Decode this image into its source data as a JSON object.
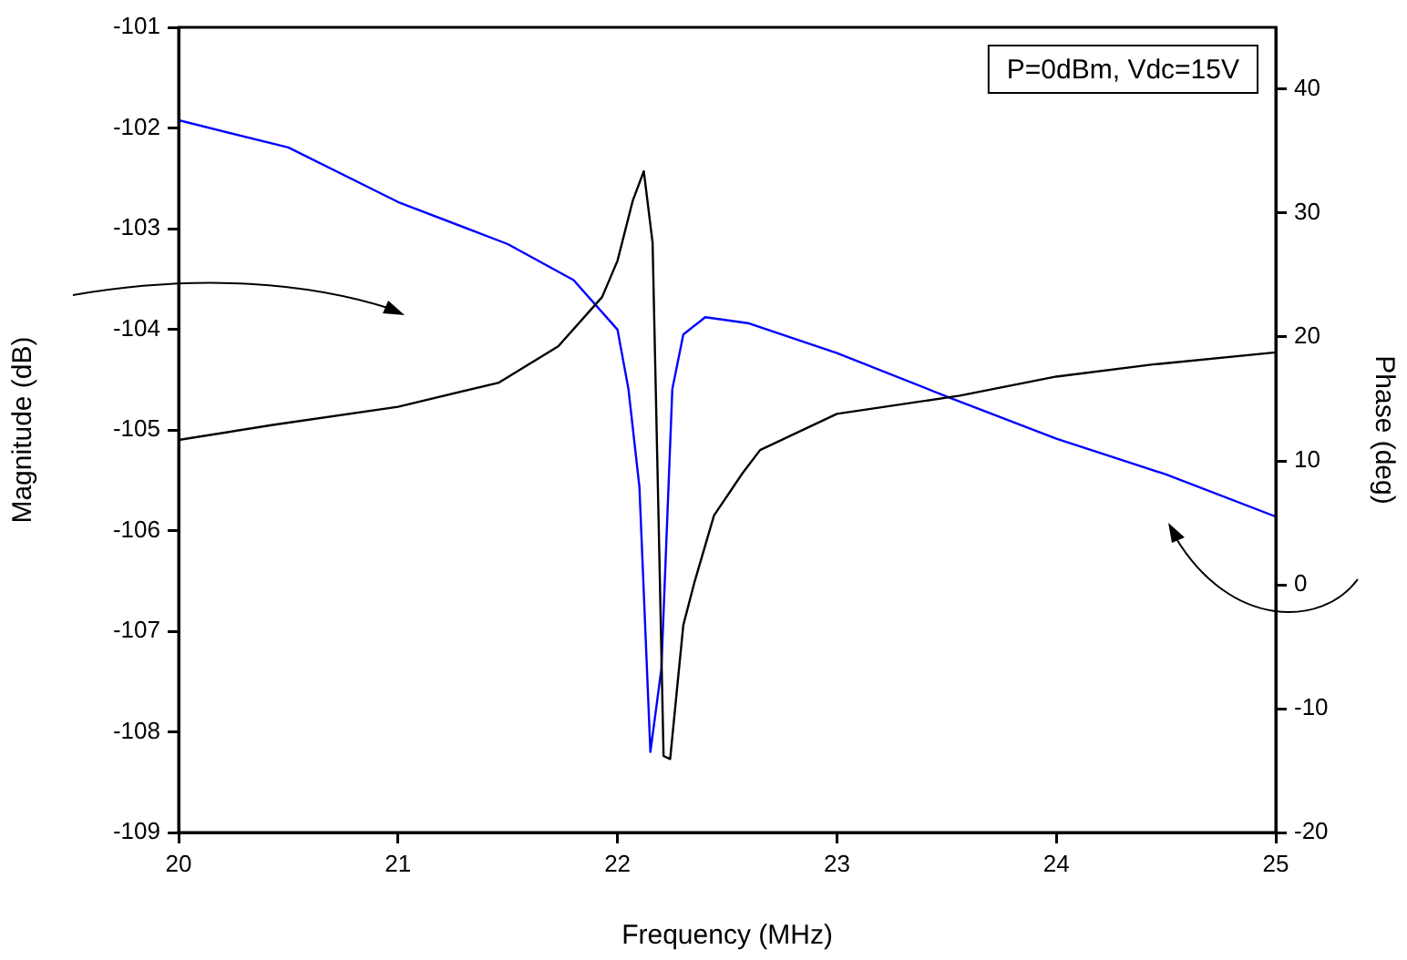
{
  "chart_data": {
    "type": "line",
    "xlabel": "Frequency (MHz)",
    "ylabel": "Magnitude (dB)",
    "y2label": "Phase (deg)",
    "annotations": [
      "P=0dBm, Vdc=15V"
    ],
    "xlim": [
      20,
      25
    ],
    "xticks": [
      20,
      21,
      22,
      23,
      24,
      25
    ],
    "ylim": [
      -109,
      -101
    ],
    "yticks": [
      -109,
      -108,
      -107,
      -106,
      -105,
      -104,
      -103,
      -102,
      -101
    ],
    "y2lim": [
      -20,
      45
    ],
    "y2ticks": [
      -20,
      -10,
      0,
      10,
      20,
      30,
      40
    ],
    "marker": "none",
    "line_style": "solid",
    "series": [
      {
        "color": "#000000",
        "x": [
          20,
          20.43,
          21,
          21.46,
          21.73,
          21.93,
          22,
          22.07,
          22.12,
          22.16,
          22.19,
          22.21,
          22.24,
          22.3,
          22.35,
          22.44,
          22.57,
          22.65,
          23,
          23.56,
          24,
          24.44,
          25
        ],
        "values": [
          -105.1,
          -104.95,
          -104.77,
          -104.53,
          -104.17,
          -103.68,
          -103.32,
          -102.72,
          -102.43,
          -103.14,
          -106.16,
          -108.24,
          -108.27,
          -106.94,
          -106.52,
          -105.85,
          -105.43,
          -105.2,
          -104.84,
          -104.66,
          -104.47,
          -104.35,
          -104.23
        ]
      },
      {
        "color": "#0000ff",
        "axis": "y2",
        "x": [
          20,
          20.5,
          21,
          21.5,
          21.8,
          22,
          22.05,
          22.1,
          22.15,
          22.2,
          22.25,
          22.3,
          22.4,
          22.6,
          23,
          23.5,
          24,
          24.5,
          25
        ],
        "values": [
          37.5,
          35.3,
          30.9,
          27.5,
          24.6,
          20.6,
          15.8,
          7.9,
          -13.5,
          -6.8,
          15.8,
          20.2,
          21.6,
          21.1,
          18.7,
          15.2,
          11.8,
          8.9,
          5.5
        ]
      }
    ]
  }
}
